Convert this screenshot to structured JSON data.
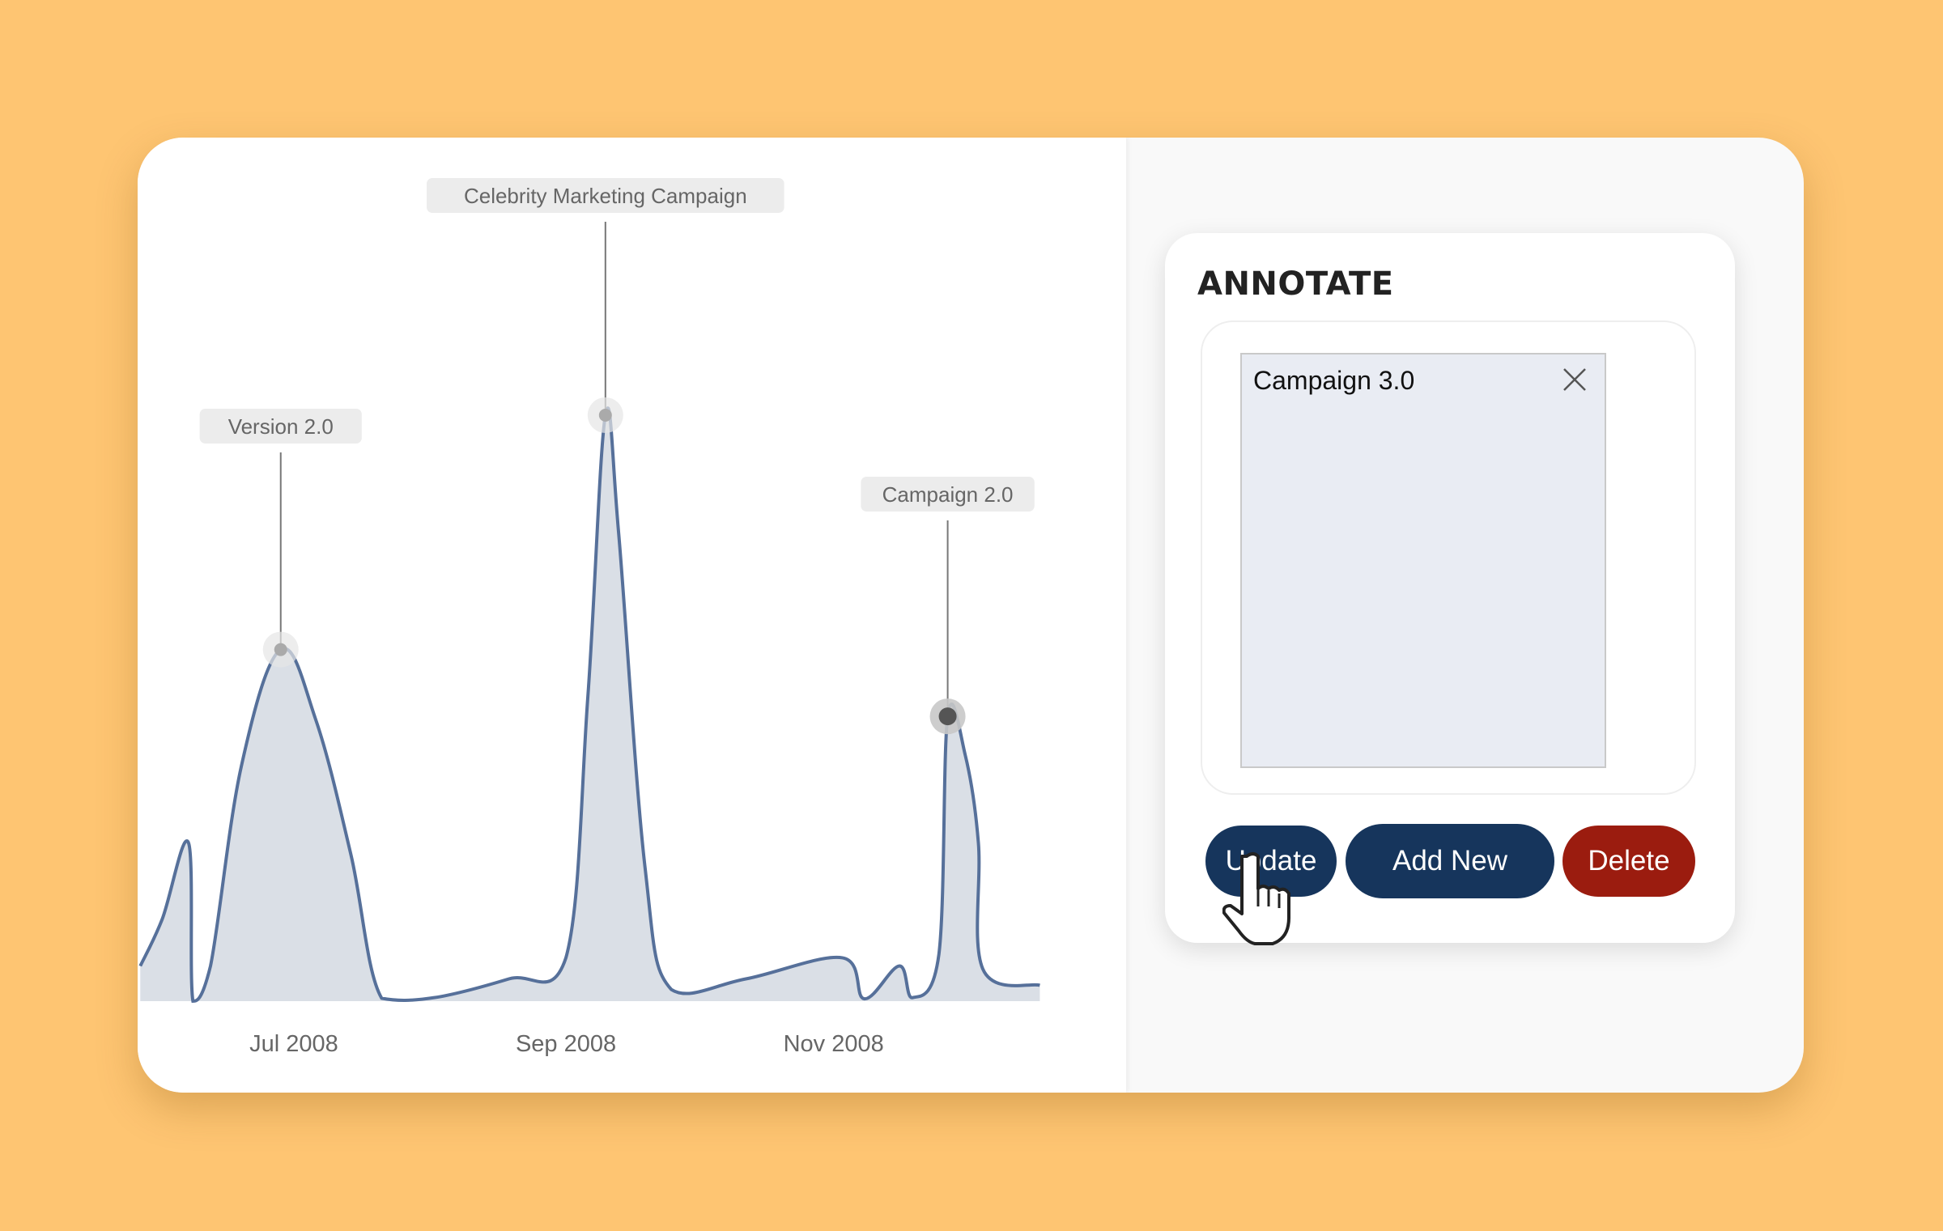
{
  "annotate_panel": {
    "title": "ANNOTATE",
    "text_value": "Campaign 3.0",
    "buttons": {
      "update": "Update",
      "add_new": "Add New",
      "delete": "Delete"
    }
  },
  "colors": {
    "background": "#fec572",
    "line": "#56709a",
    "fill": "#d8dde5",
    "primary_button": "#16355c",
    "delete_button": "#9b1c0f"
  },
  "chart_data": {
    "type": "area",
    "x_ticks": [
      "Jul 2008",
      "Sep 2008",
      "Nov 2008"
    ],
    "y_axis": "none (relative units, 0-100)",
    "grid": false,
    "series": [
      {
        "points": [
          [
            "2008-05-27",
            6
          ],
          [
            "2008-06-01",
            14
          ],
          [
            "2008-06-07",
            27
          ],
          [
            "2008-06-08",
            0
          ],
          [
            "2008-06-12",
            6
          ],
          [
            "2008-06-19",
            40
          ],
          [
            "2008-06-28",
            60
          ],
          [
            "2008-07-06",
            48
          ],
          [
            "2008-07-14",
            25
          ],
          [
            "2008-07-21",
            0.5
          ],
          [
            "2008-08-02",
            0.6
          ],
          [
            "2008-08-19",
            3.8
          ],
          [
            "2008-09-01",
            7.4
          ],
          [
            "2008-09-06",
            52
          ],
          [
            "2008-09-10",
            100
          ],
          [
            "2008-09-13",
            80
          ],
          [
            "2008-09-19",
            23
          ],
          [
            "2008-09-25",
            2
          ],
          [
            "2008-10-12",
            3.8
          ],
          [
            "2008-11-03",
            7.4
          ],
          [
            "2008-11-08",
            0.4
          ],
          [
            "2008-11-16",
            6
          ],
          [
            "2008-11-19",
            0.6
          ],
          [
            "2008-11-25",
            8
          ],
          [
            "2008-11-27",
            48.6
          ],
          [
            "2008-12-01",
            42
          ],
          [
            "2008-12-04",
            27
          ],
          [
            "2008-12-05",
            5.5
          ],
          [
            "2008-12-18",
            2.7
          ]
        ]
      }
    ],
    "annotations": [
      {
        "label": "Version 2.0",
        "date": "2008-06-28",
        "value": 60,
        "selected": false
      },
      {
        "label": "Celebrity Marketing Campaign",
        "date": "2008-09-10",
        "value": 100,
        "selected": false
      },
      {
        "label": "Campaign 2.0",
        "date": "2008-11-27",
        "value": 48.6,
        "selected": true
      }
    ]
  }
}
